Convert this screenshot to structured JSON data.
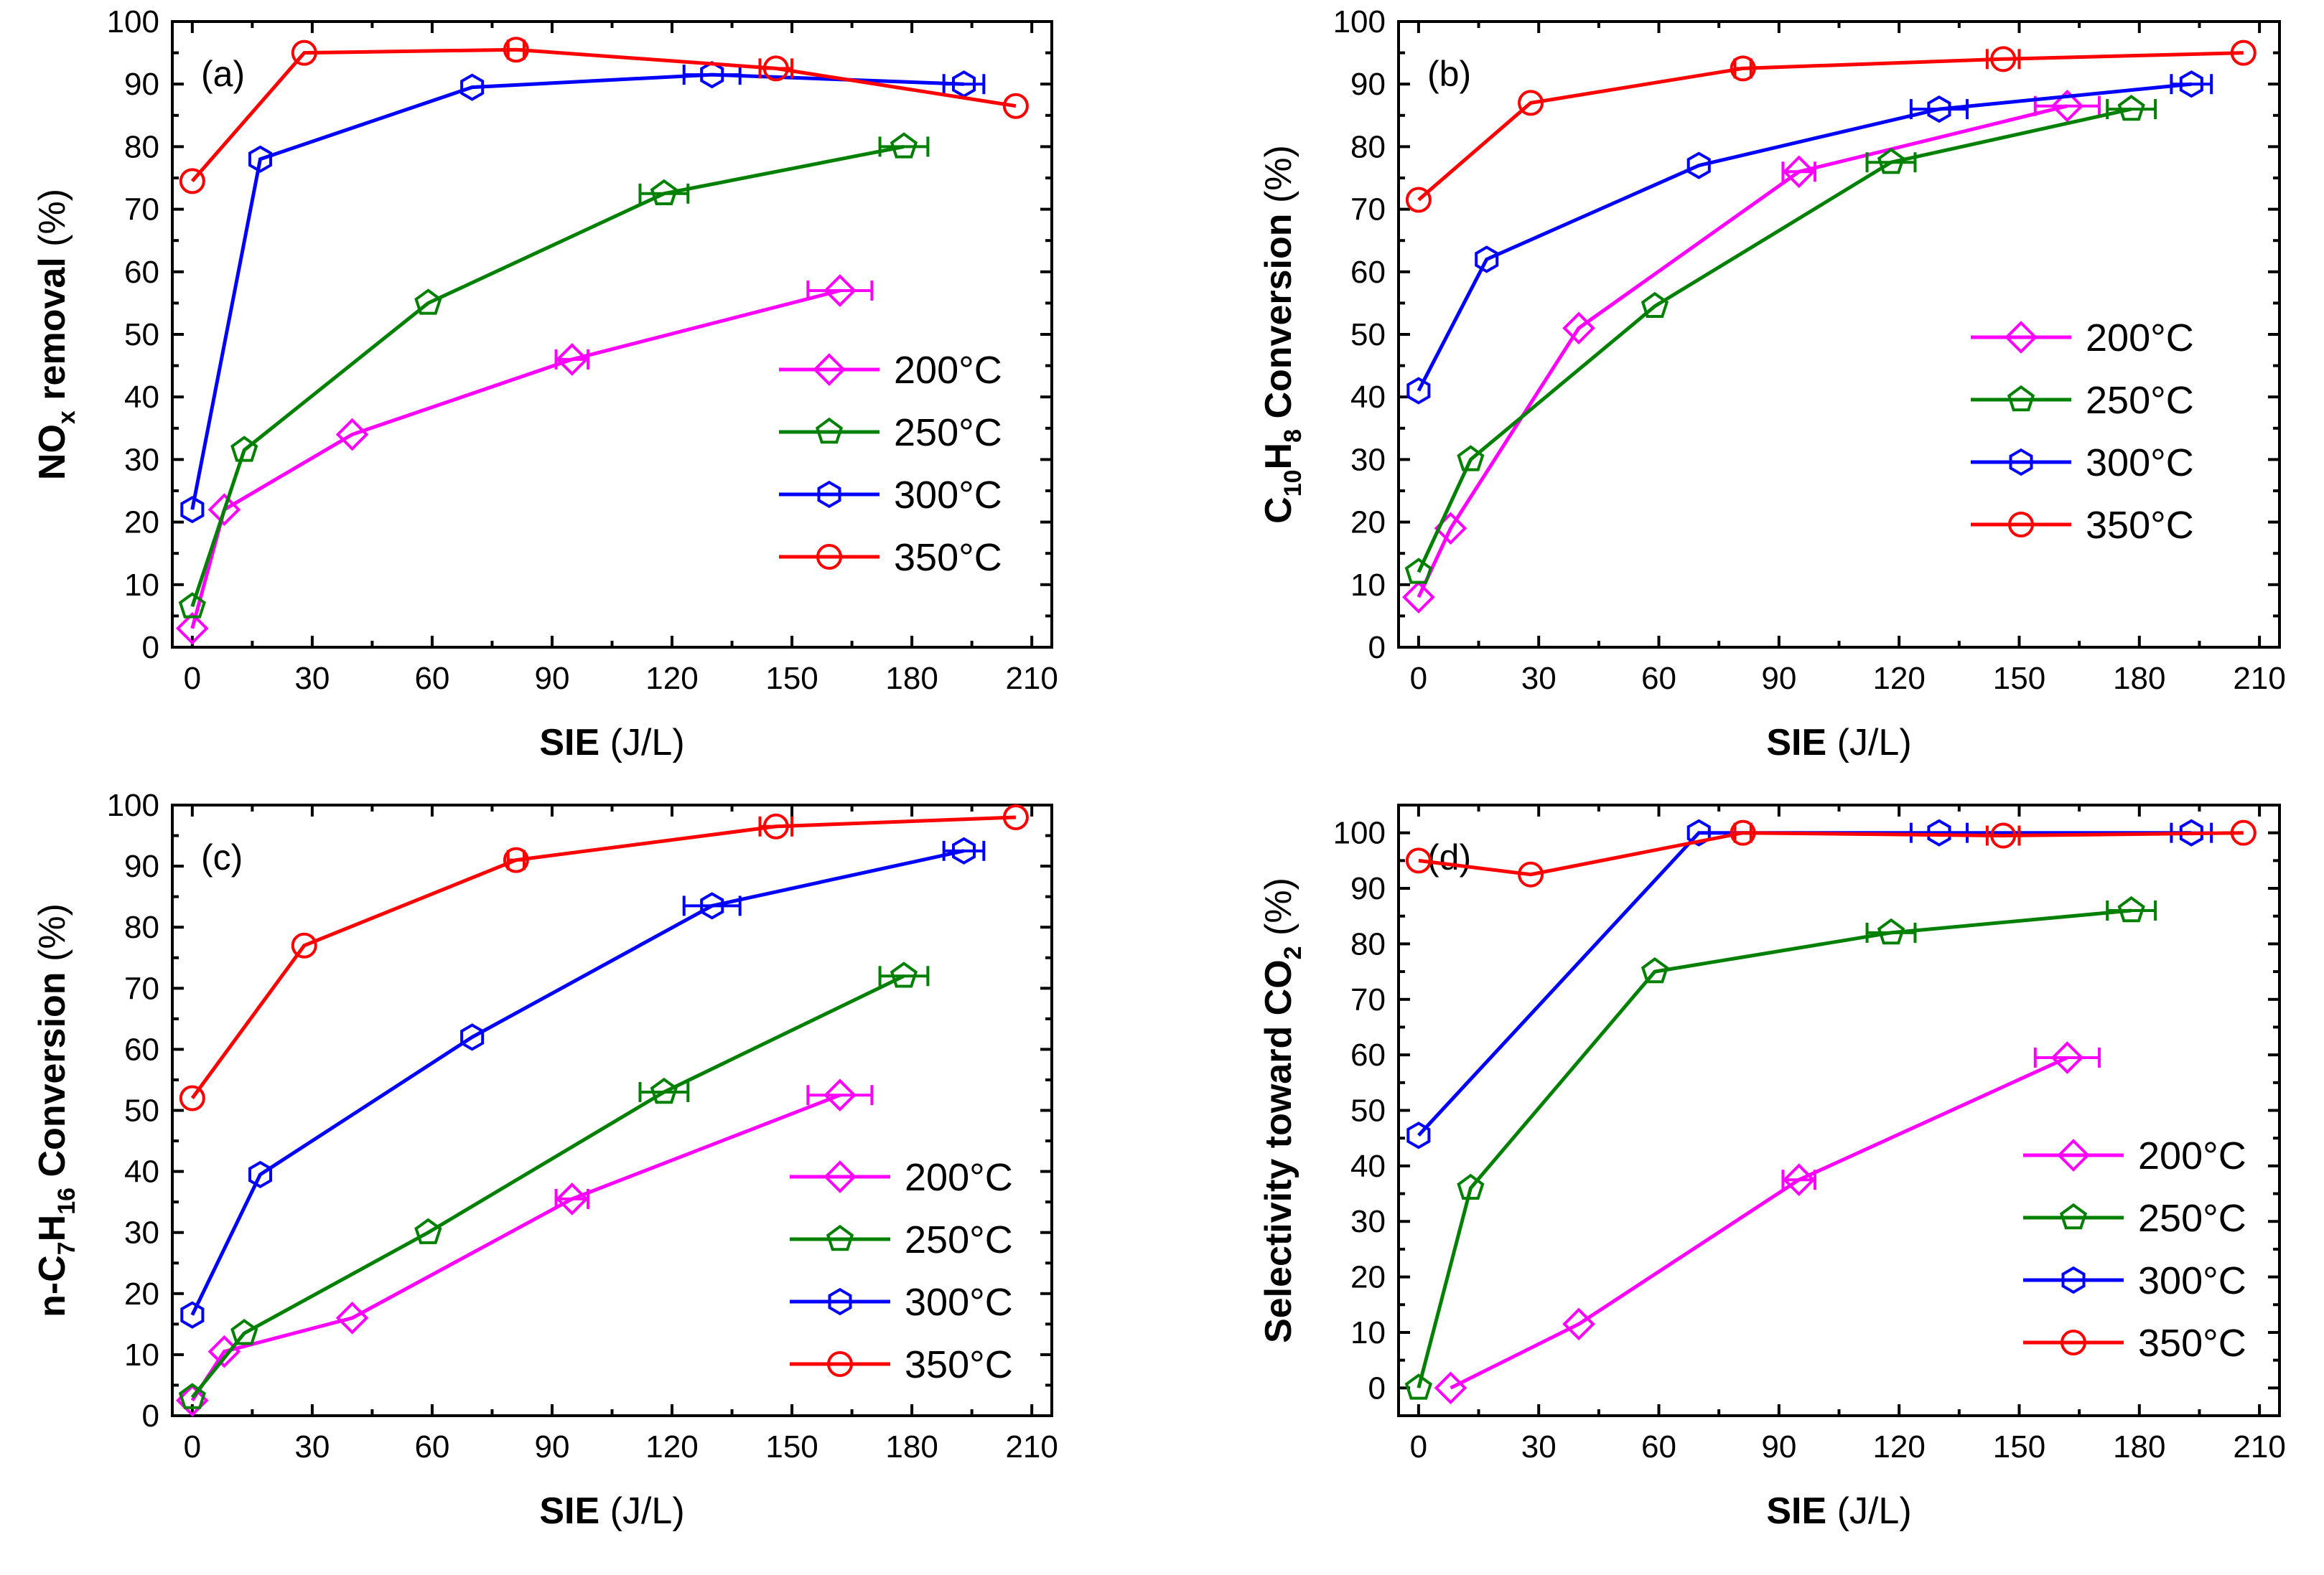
{
  "chart_data": [
    {
      "type": "line",
      "panel_label": "(a)",
      "ylabel": "NOx removal (%)",
      "ylabel_parts": [
        {
          "t": "NO",
          "w": "bold"
        },
        {
          "t": "x",
          "sub": true,
          "w": "bold"
        },
        {
          "t": " removal ",
          "w": "bold"
        },
        {
          "t": "(%)",
          "w": "normal"
        }
      ],
      "xlabel_bold": "SIE",
      "xlabel_rest": " (J/L)",
      "xlim": [
        -5,
        215
      ],
      "ylim": [
        0,
        100
      ],
      "xticks": [
        0,
        30,
        60,
        90,
        120,
        150,
        180,
        210
      ],
      "yticks": [
        0,
        10,
        20,
        30,
        40,
        50,
        60,
        70,
        80,
        90,
        100
      ],
      "legend_position": "lower-right",
      "series": [
        {
          "name": "200°C",
          "color": "#ff00ff",
          "marker": "diamond",
          "x": [
            0,
            8,
            40,
            95,
            162
          ],
          "y": [
            3,
            22,
            34,
            46,
            57
          ],
          "xerr": [
            0,
            1,
            1,
            4,
            8
          ]
        },
        {
          "name": "250°C",
          "color": "#008000",
          "marker": "pentagon",
          "x": [
            0,
            13,
            59,
            118,
            178
          ],
          "y": [
            6.5,
            31.5,
            55,
            72.5,
            80
          ],
          "xerr": [
            0,
            1,
            1,
            6,
            6
          ]
        },
        {
          "name": "300°C",
          "color": "#0000ff",
          "marker": "hexagon",
          "x": [
            0,
            17,
            70,
            130,
            193
          ],
          "y": [
            22,
            78,
            89.5,
            91.5,
            90
          ],
          "xerr": [
            0,
            1,
            1,
            7,
            5
          ]
        },
        {
          "name": "350°C",
          "color": "#ff0000",
          "marker": "circle",
          "x": [
            0,
            28,
            81,
            146,
            206
          ],
          "y": [
            74.5,
            95,
            95.5,
            92.5,
            86.5
          ],
          "xerr": [
            0,
            1,
            2,
            4,
            1
          ]
        }
      ]
    },
    {
      "type": "line",
      "panel_label": "(b)",
      "ylabel": "C10H8 Conversion (%)",
      "ylabel_parts": [
        {
          "t": "C",
          "w": "bold"
        },
        {
          "t": "10",
          "sub": true,
          "w": "bold"
        },
        {
          "t": "H",
          "w": "bold"
        },
        {
          "t": "8",
          "sub": true,
          "w": "bold"
        },
        {
          "t": " Conversion ",
          "w": "bold"
        },
        {
          "t": "(%)",
          "w": "normal"
        }
      ],
      "xlabel_bold": "SIE",
      "xlabel_rest": " (J/L)",
      "xlim": [
        -5,
        215
      ],
      "ylim": [
        0,
        100
      ],
      "xticks": [
        0,
        30,
        60,
        90,
        120,
        150,
        180,
        210
      ],
      "yticks": [
        0,
        10,
        20,
        30,
        40,
        50,
        60,
        70,
        80,
        90,
        100
      ],
      "legend_position": "lower-right",
      "series": [
        {
          "name": "200°C",
          "color": "#ff00ff",
          "marker": "diamond",
          "x": [
            0,
            8,
            40,
            95,
            162
          ],
          "y": [
            8,
            19,
            51,
            76,
            86.5
          ],
          "xerr": [
            0,
            1,
            1,
            4,
            8
          ]
        },
        {
          "name": "250°C",
          "color": "#008000",
          "marker": "pentagon",
          "x": [
            0,
            13,
            59,
            118,
            178
          ],
          "y": [
            12,
            30,
            54.5,
            77.5,
            86
          ],
          "xerr": [
            0,
            1,
            1,
            6,
            6
          ]
        },
        {
          "name": "300°C",
          "color": "#0000ff",
          "marker": "hexagon",
          "x": [
            0,
            17,
            70,
            130,
            193
          ],
          "y": [
            41,
            62,
            77,
            86,
            90
          ],
          "xerr": [
            0,
            1,
            1,
            7,
            5
          ]
        },
        {
          "name": "350°C",
          "color": "#ff0000",
          "marker": "circle",
          "x": [
            0,
            28,
            81,
            146,
            206
          ],
          "y": [
            71.5,
            87,
            92.5,
            94,
            95
          ],
          "xerr": [
            0,
            1,
            2,
            4,
            1
          ]
        }
      ]
    },
    {
      "type": "line",
      "panel_label": "(c)",
      "ylabel": "n-C7H16 Conversion (%)",
      "ylabel_parts": [
        {
          "t": "n-C",
          "w": "bold"
        },
        {
          "t": "7",
          "sub": true,
          "w": "bold"
        },
        {
          "t": "H",
          "w": "bold"
        },
        {
          "t": "16",
          "sub": true,
          "w": "bold"
        },
        {
          "t": " Conversion ",
          "w": "bold"
        },
        {
          "t": "(%)",
          "w": "normal"
        }
      ],
      "xlabel_bold": "SIE",
      "xlabel_rest": " (J/L)",
      "xlim": [
        -5,
        215
      ],
      "ylim": [
        0,
        100
      ],
      "xticks": [
        0,
        30,
        60,
        90,
        120,
        150,
        180,
        210
      ],
      "yticks": [
        0,
        10,
        20,
        30,
        40,
        50,
        60,
        70,
        80,
        90,
        100
      ],
      "legend_position": "lower-right",
      "series": [
        {
          "name": "200°C",
          "color": "#ff00ff",
          "marker": "diamond",
          "x": [
            0,
            8,
            40,
            95,
            162
          ],
          "y": [
            2.5,
            10.5,
            16,
            35.5,
            52.5
          ],
          "xerr": [
            0,
            1,
            1,
            4,
            8
          ]
        },
        {
          "name": "250°C",
          "color": "#008000",
          "marker": "pentagon",
          "x": [
            0,
            13,
            59,
            118,
            178
          ],
          "y": [
            3,
            13.5,
            30,
            53,
            72
          ],
          "xerr": [
            0,
            1,
            1,
            6,
            6
          ]
        },
        {
          "name": "300°C",
          "color": "#0000ff",
          "marker": "hexagon",
          "x": [
            0,
            17,
            70,
            130,
            193
          ],
          "y": [
            16.5,
            39.5,
            62,
            83.5,
            92.5
          ],
          "xerr": [
            0,
            1,
            1,
            7,
            5
          ]
        },
        {
          "name": "350°C",
          "color": "#ff0000",
          "marker": "circle",
          "x": [
            0,
            28,
            81,
            146,
            206
          ],
          "y": [
            52,
            77,
            91,
            96.5,
            98
          ],
          "xerr": [
            0,
            1,
            2,
            4,
            1
          ]
        }
      ]
    },
    {
      "type": "line",
      "panel_label": "(d)",
      "ylabel": "Selectivity toward CO2 (%)",
      "ylabel_parts": [
        {
          "t": "Selectivity toward CO",
          "w": "bold"
        },
        {
          "t": "2",
          "sub": true,
          "w": "bold"
        },
        {
          "t": " ",
          "w": "bold"
        },
        {
          "t": "(%)",
          "w": "normal"
        }
      ],
      "xlabel_bold": "SIE",
      "xlabel_rest": " (J/L)",
      "xlim": [
        -5,
        215
      ],
      "ylim": [
        -5,
        105
      ],
      "xticks": [
        0,
        30,
        60,
        90,
        120,
        150,
        180,
        210
      ],
      "yticks": [
        0,
        10,
        20,
        30,
        40,
        50,
        60,
        70,
        80,
        90,
        100
      ],
      "legend_position": "lower-right",
      "series": [
        {
          "name": "200°C",
          "color": "#ff00ff",
          "marker": "diamond",
          "x": [
            8,
            40,
            95,
            162
          ],
          "y": [
            0,
            11.5,
            37.5,
            59.5
          ],
          "xerr": [
            1,
            1,
            4,
            8
          ]
        },
        {
          "name": "250°C",
          "color": "#008000",
          "marker": "pentagon",
          "x": [
            0,
            13,
            59,
            118,
            178
          ],
          "y": [
            0,
            36,
            75,
            82,
            86
          ],
          "xerr": [
            0,
            1,
            1,
            6,
            6
          ]
        },
        {
          "name": "300°C",
          "color": "#0000ff",
          "marker": "hexagon",
          "x": [
            0,
            70,
            130,
            193
          ],
          "y": [
            45.5,
            100,
            100,
            100
          ],
          "xerr": [
            0,
            1,
            7,
            5
          ]
        },
        {
          "name": "350°C",
          "color": "#ff0000",
          "marker": "circle",
          "x": [
            0,
            28,
            81,
            146,
            206
          ],
          "y": [
            95,
            92.5,
            100,
            99.5,
            100
          ],
          "xerr": [
            0,
            1,
            2,
            4,
            1
          ]
        }
      ]
    }
  ]
}
